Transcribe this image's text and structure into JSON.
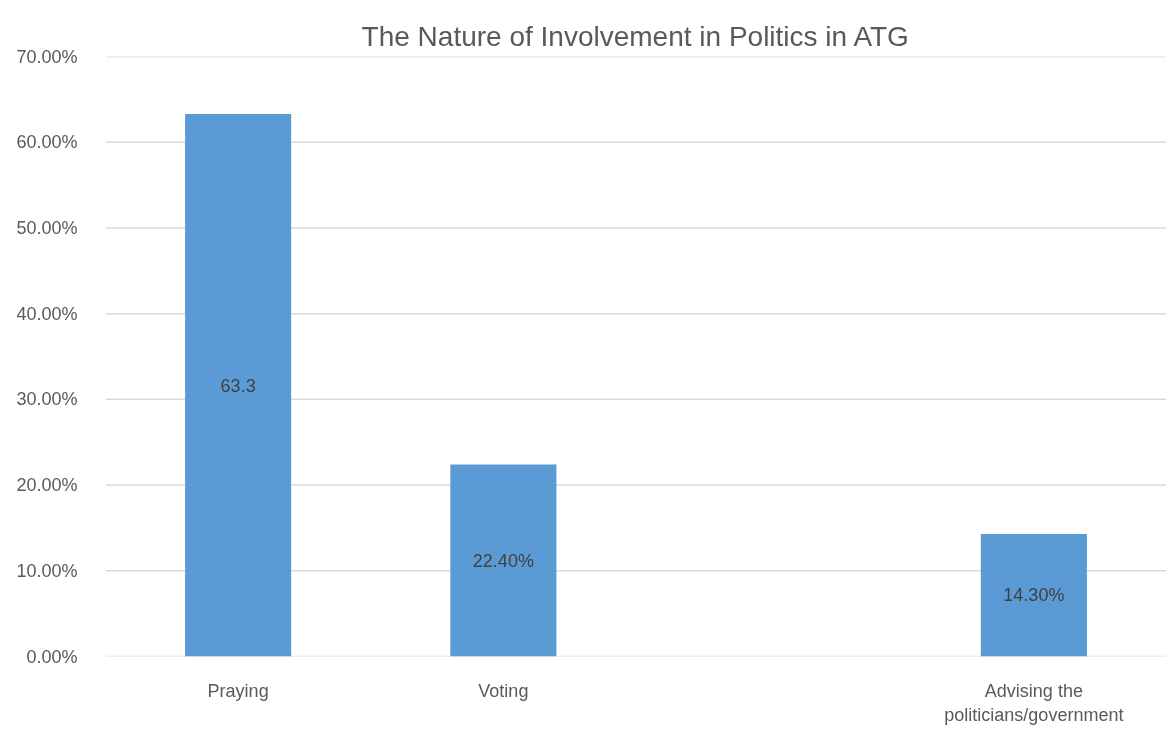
{
  "chart_data": {
    "type": "bar",
    "title": "The Nature of Involvement in Politics in ATG",
    "categories": [
      "Praying",
      "Voting",
      null,
      "Advising the politicians/government"
    ],
    "values": [
      63.3,
      22.4,
      null,
      14.3
    ],
    "value_labels": [
      "63.3",
      "22.40%",
      null,
      "14.30%"
    ],
    "color": "#5b9bd5",
    "ylim": [
      0,
      70
    ],
    "yticks": [
      {
        "value": 0,
        "label": "0.00%"
      },
      {
        "value": 10,
        "label": "10.00%"
      },
      {
        "value": 20,
        "label": "20.00%"
      },
      {
        "value": 30,
        "label": "30.00%"
      },
      {
        "value": 40,
        "label": "40.00%"
      },
      {
        "value": 50,
        "label": "50.00%"
      },
      {
        "value": 60,
        "label": "60.00%"
      },
      {
        "value": 70,
        "label": "70.00%"
      }
    ],
    "grid": "y"
  }
}
